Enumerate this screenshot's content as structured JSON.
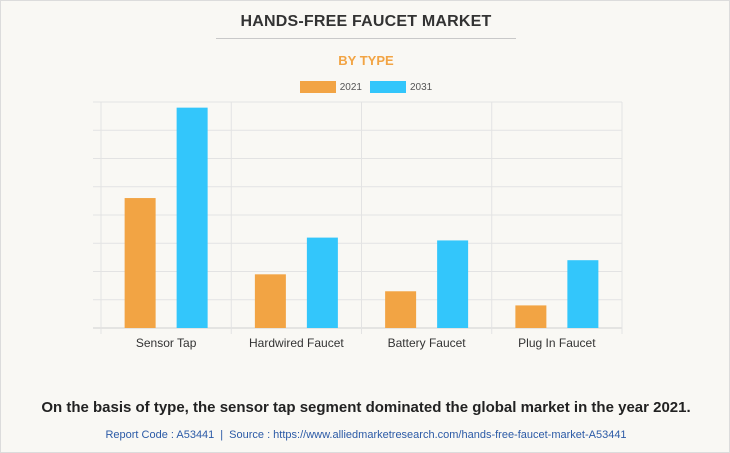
{
  "title": "HANDS-FREE FAUCET MARKET",
  "subtitle": "BY TYPE",
  "colors": {
    "series_2021": "#f2a444",
    "series_2031": "#33c6fb",
    "subtitle": "#f2a444"
  },
  "chart_data": {
    "type": "bar",
    "categories": [
      "Sensor Tap",
      "Hardwired Faucet",
      "Battery Faucet",
      "Plug In Faucet"
    ],
    "series": [
      {
        "name": "2021",
        "values": [
          4.6,
          1.9,
          1.3,
          0.8
        ]
      },
      {
        "name": "2031",
        "values": [
          7.8,
          3.2,
          3.1,
          2.4
        ]
      }
    ],
    "ylim": [
      0,
      8
    ],
    "grid": true,
    "legend": "top-center",
    "xlabel": "",
    "ylabel": ""
  },
  "caption": "On the basis of type, the sensor tap segment dominated the global market in the year 2021.",
  "footer": {
    "report_code": "Report Code : A53441",
    "separator": "|",
    "source": "Source : https://www.alliedmarketresearch.com/hands-free-faucet-market-A53441"
  }
}
